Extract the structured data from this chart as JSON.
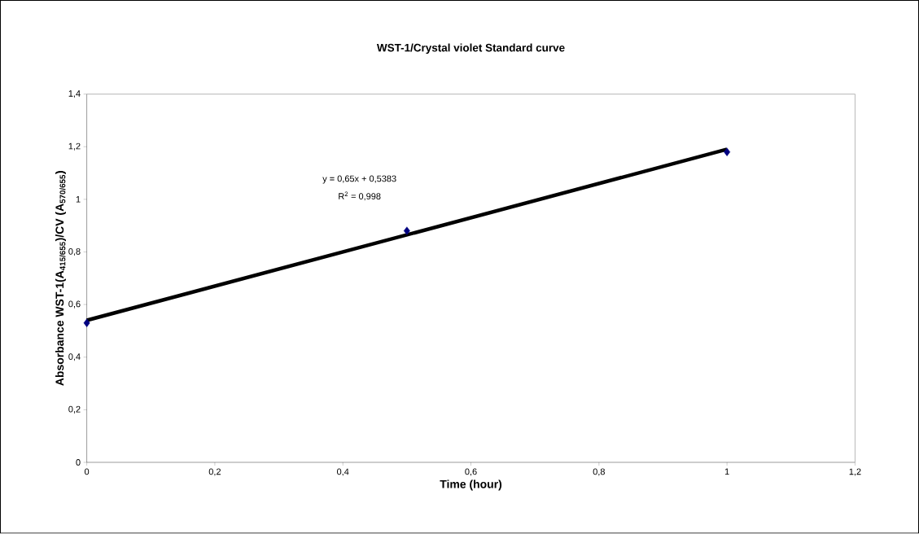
{
  "chart_data": {
    "type": "scatter",
    "title": "WST-1/Crystal violet Standard curve",
    "xlabel": "Time (hour)",
    "ylabel": "Absorbance WST-1(A$_{415/655}$)/CV (A$_{570/655}$)",
    "x": [
      0,
      0.5,
      1
    ],
    "series": [
      {
        "color": "#000080",
        "marker": "diamond",
        "values": [
          0.53,
          0.88,
          1.18
        ]
      },
      {
        "type": "line",
        "color": "#000000",
        "marker": "none",
        "x": [
          0,
          1
        ],
        "values": [
          0.54,
          1.19
        ]
      }
    ],
    "xlim": [
      0,
      1.2
    ],
    "ylim": [
      0,
      1.4
    ],
    "xticks": [
      0,
      {
        "value": 0.2,
        "label": "0,2"
      },
      {
        "value": 0.4,
        "label": "0,4"
      },
      {
        "value": 0.6,
        "label": "0,6"
      },
      {
        "value": 0.8,
        "label": "0,8"
      },
      1,
      {
        "value": 1.2,
        "label": "1,2"
      }
    ],
    "yticks": [
      0,
      {
        "value": 0.2,
        "label": "0,2"
      },
      {
        "value": 0.4,
        "label": "0,4"
      },
      {
        "value": 0.6,
        "label": "0,6"
      },
      {
        "value": 0.8,
        "label": "0,8"
      },
      1,
      {
        "value": 1.2,
        "label": "1,2"
      },
      {
        "value": 1.4,
        "label": "1,4"
      }
    ],
    "grid": false,
    "annotations": [
      "y = 0,65x + 0,5383",
      "R$^{2}$ = 0,998"
    ]
  }
}
